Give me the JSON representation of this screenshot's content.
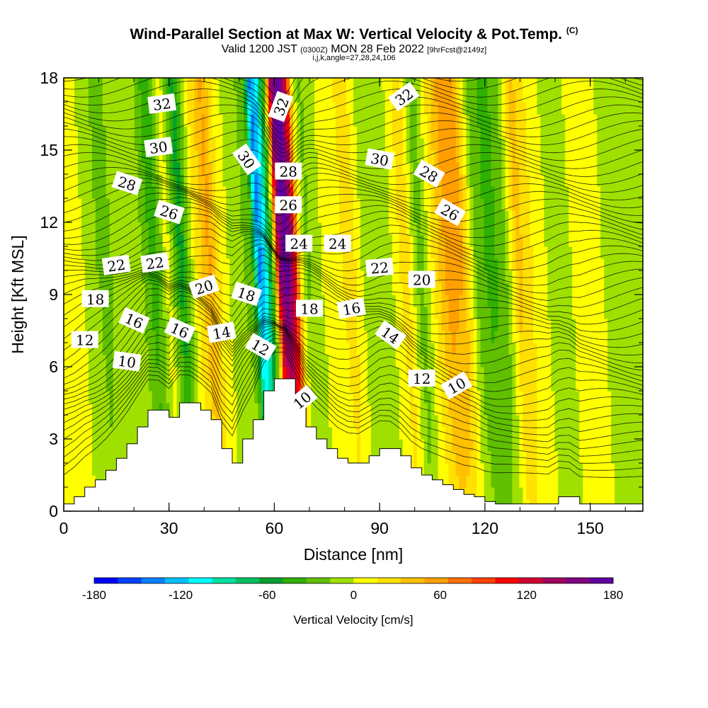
{
  "chart_data": {
    "type": "heatmap",
    "title": "Wind-Parallel Section at Max W: Vertical Velocity & Pot.Temp.",
    "copyright": "(C)",
    "subtitle_pre": "Valid 1200 JST",
    "subtitle_small1": "(0300Z)",
    "subtitle_mid": "MON 28 Feb 2022",
    "subtitle_small2": "[9hrFcst@2149z]",
    "subtitle2": "i,j,k,angle=27,28,24,106",
    "xlabel": "Distance [nm]",
    "ylabel": "Height [Kft MSL]",
    "xlim": [
      0,
      165
    ],
    "ylim": [
      0,
      18
    ],
    "xticks": [
      "0",
      "30",
      "60",
      "90",
      "120",
      "150"
    ],
    "yticks": [
      "0",
      "3",
      "6",
      "9",
      "12",
      "15",
      "18"
    ],
    "colorbar": {
      "label": "Vertical Velocity [cm/s]",
      "tick_labels": [
        "-180",
        "-120",
        "-60",
        "0",
        "60",
        "120",
        "180"
      ],
      "colors": [
        "#0000ff",
        "#0040ff",
        "#0080ff",
        "#00c0ff",
        "#00ffff",
        "#00e0a0",
        "#00c060",
        "#00a030",
        "#30b000",
        "#60c000",
        "#a0e000",
        "#ffff00",
        "#ffe000",
        "#ffc000",
        "#ffa000",
        "#ff7000",
        "#ff4000",
        "#ff0000",
        "#d00030",
        "#a00060",
        "#800080",
        "#6000a0"
      ]
    },
    "w_field": {
      "x_nm": [
        0,
        6,
        12,
        18,
        22,
        26,
        28,
        30,
        34,
        38,
        42,
        46,
        50,
        54,
        56,
        58,
        60,
        62,
        64,
        66,
        68,
        70,
        74,
        78,
        82,
        86,
        90,
        94,
        98,
        102,
        106,
        110,
        114,
        118,
        122,
        126,
        130,
        136,
        142,
        148,
        154,
        160,
        165
      ],
      "values_cm_s": [
        10,
        0,
        -25,
        0,
        -10,
        -45,
        -25,
        10,
        -60,
        15,
        55,
        5,
        -10,
        -25,
        -140,
        -110,
        -30,
        150,
        175,
        130,
        10,
        -20,
        0,
        5,
        30,
        -5,
        -15,
        0,
        30,
        -30,
        20,
        60,
        50,
        -20,
        -40,
        -25,
        40,
        5,
        -10,
        10,
        0,
        -10,
        -5
      ]
    },
    "terrain": {
      "x_nm": [
        0,
        3,
        6,
        9,
        12,
        15,
        18,
        21,
        24,
        27,
        30,
        33,
        36,
        39,
        42,
        45,
        48,
        51,
        54,
        57,
        60,
        63,
        66,
        69,
        72,
        75,
        78,
        81,
        84,
        87,
        90,
        93,
        96,
        99,
        102,
        105,
        108,
        111,
        114,
        117,
        120,
        123,
        126,
        129,
        132,
        135,
        138,
        141,
        144,
        147,
        150,
        153,
        156,
        159,
        162,
        165
      ],
      "height_kft": [
        0.3,
        0.6,
        1.0,
        1.3,
        1.7,
        2.2,
        2.8,
        3.5,
        4.2,
        4.2,
        3.9,
        4.5,
        4.5,
        4.2,
        3.8,
        2.6,
        2.0,
        3.0,
        3.8,
        5.0,
        5.5,
        5.5,
        4.5,
        3.5,
        3.0,
        2.6,
        2.2,
        2.0,
        2.0,
        2.3,
        2.6,
        2.6,
        2.3,
        1.8,
        1.5,
        1.3,
        1.1,
        0.9,
        0.7,
        0.6,
        0.4,
        0.3,
        0.3,
        0.3,
        0.3,
        0.3,
        0.3,
        0.6,
        0.6,
        0.3,
        0.3,
        0.3,
        0.3,
        0.3,
        0.3,
        0.3
      ]
    },
    "theta_contours_C": {
      "base_levels": [
        8,
        9,
        10,
        11,
        12,
        13,
        14,
        15,
        16,
        17,
        18,
        19,
        20,
        21,
        22,
        23,
        24,
        25,
        26,
        27,
        28,
        29,
        30,
        31,
        32,
        33,
        34
      ],
      "labels": [
        {
          "text": "32",
          "x": 28,
          "y": 16.9,
          "rot": -8
        },
        {
          "text": "30",
          "x": 27,
          "y": 15.1,
          "rot": -8
        },
        {
          "text": "28",
          "x": 18,
          "y": 13.6,
          "rot": 18
        },
        {
          "text": "26",
          "x": 30,
          "y": 12.4,
          "rot": 18
        },
        {
          "text": "22",
          "x": 15,
          "y": 10.2,
          "rot": -8
        },
        {
          "text": "22",
          "x": 26,
          "y": 10.3,
          "rot": -8
        },
        {
          "text": "18",
          "x": 9,
          "y": 8.8,
          "rot": 0
        },
        {
          "text": "20",
          "x": 40,
          "y": 9.3,
          "rot": -18
        },
        {
          "text": "16",
          "x": 20,
          "y": 7.9,
          "rot": 24
        },
        {
          "text": "16",
          "x": 33,
          "y": 7.5,
          "rot": 24
        },
        {
          "text": "14",
          "x": 45,
          "y": 7.4,
          "rot": -10
        },
        {
          "text": "12",
          "x": 6,
          "y": 7.1,
          "rot": 0
        },
        {
          "text": "10",
          "x": 18,
          "y": 6.2,
          "rot": 8
        },
        {
          "text": "18",
          "x": 52,
          "y": 9.0,
          "rot": 18
        },
        {
          "text": "32",
          "x": 62,
          "y": 16.8,
          "rot": -70
        },
        {
          "text": "30",
          "x": 52,
          "y": 14.6,
          "rot": 55
        },
        {
          "text": "28",
          "x": 64,
          "y": 14.1,
          "rot": 0
        },
        {
          "text": "26",
          "x": 64,
          "y": 12.7,
          "rot": 0
        },
        {
          "text": "24",
          "x": 67,
          "y": 11.1,
          "rot": 0
        },
        {
          "text": "24",
          "x": 78,
          "y": 11.1,
          "rot": 0
        },
        {
          "text": "12",
          "x": 56,
          "y": 6.8,
          "rot": 30
        },
        {
          "text": "18",
          "x": 70,
          "y": 8.4,
          "rot": 0
        },
        {
          "text": "16",
          "x": 82,
          "y": 8.4,
          "rot": -10
        },
        {
          "text": "10",
          "x": 68,
          "y": 4.6,
          "rot": -40
        },
        {
          "text": "30",
          "x": 90,
          "y": 14.6,
          "rot": 10
        },
        {
          "text": "32",
          "x": 97,
          "y": 17.2,
          "rot": -35
        },
        {
          "text": "28",
          "x": 104,
          "y": 14.0,
          "rot": 30
        },
        {
          "text": "26",
          "x": 110,
          "y": 12.4,
          "rot": 30
        },
        {
          "text": "22",
          "x": 90,
          "y": 10.1,
          "rot": -5
        },
        {
          "text": "20",
          "x": 102,
          "y": 9.6,
          "rot": 0
        },
        {
          "text": "14",
          "x": 93,
          "y": 7.3,
          "rot": 35
        },
        {
          "text": "12",
          "x": 102,
          "y": 5.5,
          "rot": 0
        },
        {
          "text": "10",
          "x": 112,
          "y": 5.2,
          "rot": -30
        }
      ]
    }
  }
}
